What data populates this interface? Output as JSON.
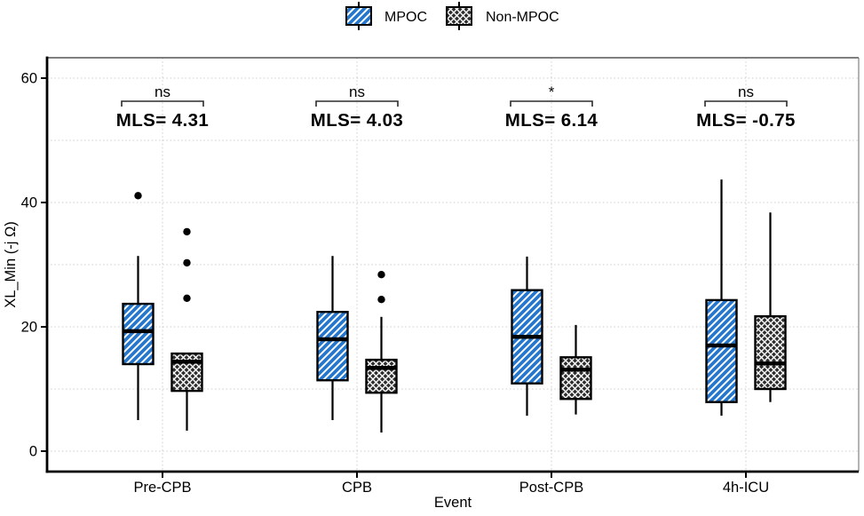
{
  "legend": {
    "items": [
      {
        "label": "MPOC",
        "fill": "#2577CE",
        "hatch": "diagonal"
      },
      {
        "label": "Non-MPOC",
        "fill": "#2e2e2e",
        "hatch": "crosshatch"
      }
    ]
  },
  "chart_data": {
    "type": "boxplot",
    "title": "",
    "xlabel": "Event",
    "ylabel": "XL_Min (-j Ω)",
    "ylim": [
      0,
      60
    ],
    "yticks": [
      0,
      20,
      40,
      60
    ],
    "ygrid_step": 10,
    "grid_style": "dotted light gray, horizontal every 10 units and vertical at each category",
    "legend_position": "top-center",
    "categories": [
      "Pre-CPB",
      "CPB",
      "Post-CPB",
      "4h-ICU"
    ],
    "series": [
      {
        "name": "MPOC",
        "fill": "#2577CE",
        "hatch": "diagonal",
        "boxes": [
          {
            "whisker_low": 5.0,
            "q1": 14.0,
            "median": 19.3,
            "q3": 23.7,
            "whisker_high": 31.4,
            "outliers": [
              41.1
            ]
          },
          {
            "whisker_low": 5.0,
            "q1": 11.4,
            "median": 18.0,
            "q3": 22.4,
            "whisker_high": 31.4,
            "outliers": []
          },
          {
            "whisker_low": 5.7,
            "q1": 10.9,
            "median": 18.4,
            "q3": 25.9,
            "whisker_high": 31.3,
            "outliers": []
          },
          {
            "whisker_low": 5.7,
            "q1": 7.9,
            "median": 17.0,
            "q3": 24.3,
            "whisker_high": 43.7,
            "outliers": []
          }
        ]
      },
      {
        "name": "Non-MPOC",
        "fill": "#2e2e2e",
        "hatch": "crosshatch",
        "boxes": [
          {
            "whisker_low": 3.3,
            "q1": 9.7,
            "median": 14.4,
            "q3": 15.7,
            "whisker_high": 15.7,
            "outliers": [
              24.6,
              30.3,
              35.3
            ]
          },
          {
            "whisker_low": 3.0,
            "q1": 9.4,
            "median": 13.4,
            "q3": 14.7,
            "whisker_high": 21.6,
            "outliers": [
              24.4,
              28.4
            ]
          },
          {
            "whisker_low": 5.9,
            "q1": 8.4,
            "median": 13.1,
            "q3": 15.1,
            "whisker_high": 20.3,
            "outliers": []
          },
          {
            "whisker_low": 7.9,
            "q1": 10.0,
            "median": 14.1,
            "q3": 21.7,
            "whisker_high": 38.4,
            "outliers": []
          }
        ]
      }
    ],
    "annotations": [
      {
        "category": "Pre-CPB",
        "significance": "ns",
        "mls_label": "MLS= 4.31"
      },
      {
        "category": "CPB",
        "significance": "ns",
        "mls_label": "MLS= 4.03"
      },
      {
        "category": "Post-CPB",
        "significance": "*",
        "mls_label": "MLS= 6.14"
      },
      {
        "category": "4h-ICU",
        "significance": "ns",
        "mls_label": "MLS= -0.75"
      }
    ]
  }
}
